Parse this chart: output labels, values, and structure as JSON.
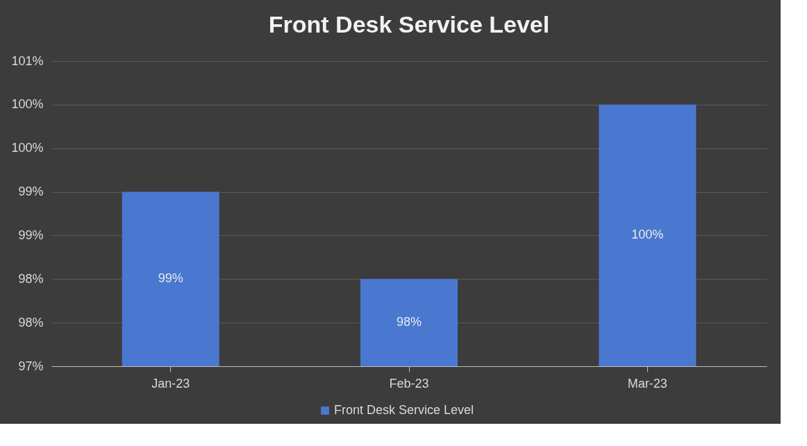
{
  "chart_data": {
    "type": "bar",
    "title": "Front Desk Service Level",
    "categories": [
      "Jan-23",
      "Feb-23",
      "Mar-23"
    ],
    "series": [
      {
        "name": "Front Desk Service Level",
        "color": "#4a78d0",
        "values": [
          99.0,
          98.0,
          100.0
        ],
        "value_labels": [
          "99%",
          "98%",
          "100%"
        ]
      }
    ],
    "ylim": [
      97,
      100.5
    ],
    "yticks": [
      {
        "value": 97,
        "label": "97%"
      },
      {
        "value": 97.5,
        "label": "98%"
      },
      {
        "value": 98,
        "label": "98%"
      },
      {
        "value": 98.5,
        "label": "99%"
      },
      {
        "value": 99,
        "label": "99%"
      },
      {
        "value": 99.5,
        "label": "100%"
      },
      {
        "value": 100,
        "label": "100%"
      },
      {
        "value": 100.5,
        "label": "101%"
      }
    ],
    "grid": "y",
    "legend": "bottom"
  }
}
